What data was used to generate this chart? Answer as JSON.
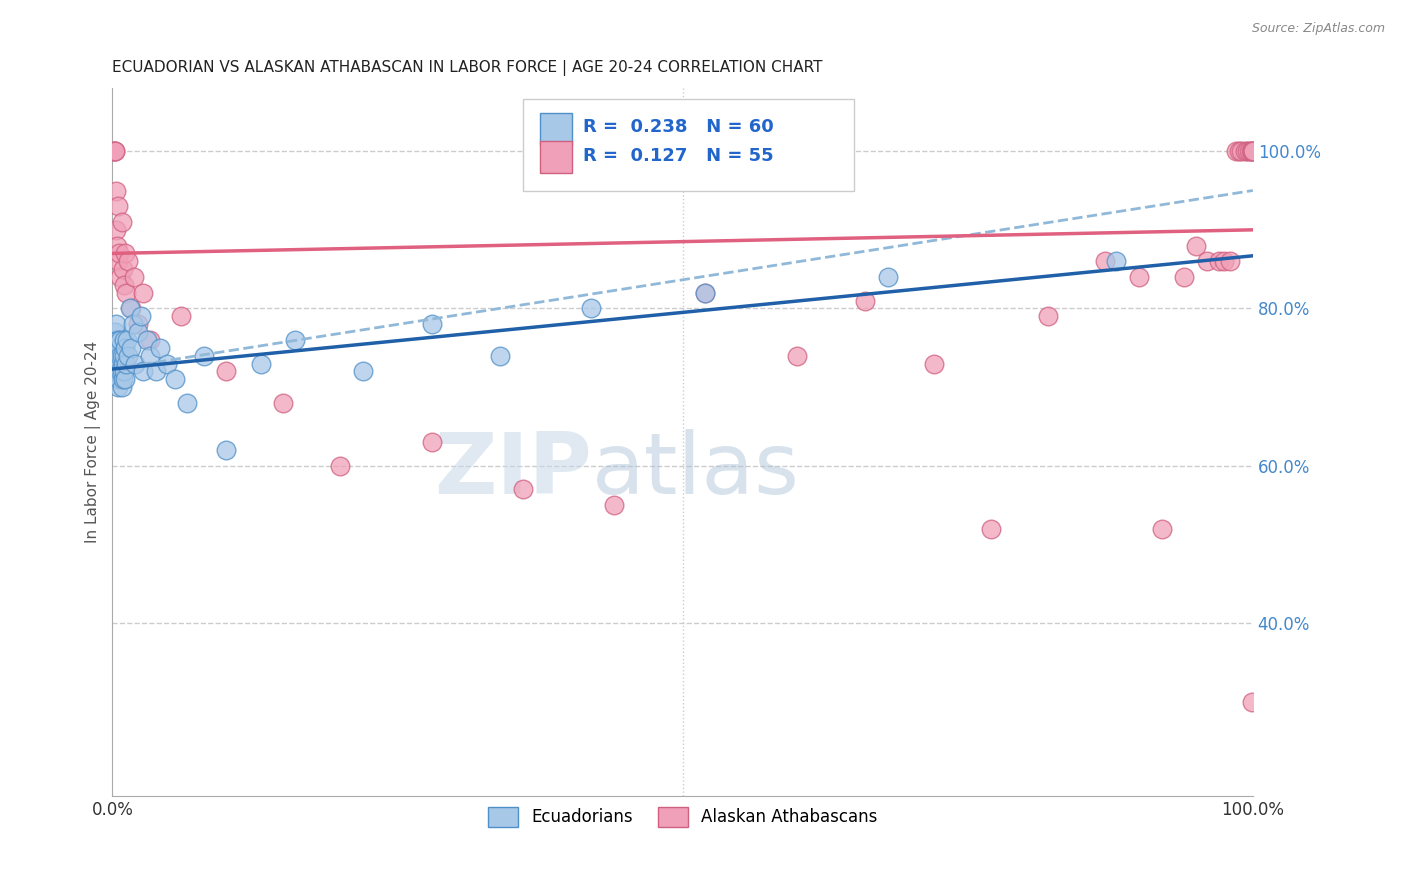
{
  "title": "ECUADORIAN VS ALASKAN ATHABASCAN IN LABOR FORCE | AGE 20-24 CORRELATION CHART",
  "source": "Source: ZipAtlas.com",
  "ylabel": "In Labor Force | Age 20-24",
  "legend_label1": "Ecuadorians",
  "legend_label2": "Alaskan Athabascans",
  "r1": 0.238,
  "n1": 60,
  "r2": 0.127,
  "n2": 55,
  "color_blue_fill": "#A8C8E8",
  "color_blue_edge": "#5090C8",
  "color_pink_fill": "#F0A0B8",
  "color_pink_edge": "#D06080",
  "color_blue_line": "#2060A8",
  "color_pink_line": "#E06080",
  "color_dashed": "#90B8D8",
  "watermark_zip": "ZIP",
  "watermark_atlas": "atlas",
  "xlim": [
    0.0,
    1.0
  ],
  "ylim": [
    0.18,
    1.08
  ],
  "yticks": [
    0.4,
    0.6,
    0.8,
    1.0
  ],
  "ytick_labels": [
    "40.0%",
    "60.0%",
    "80.0%",
    "100.0%"
  ],
  "grid_color": "#CCCCCC",
  "blue_x": [
    0.001,
    0.001,
    0.002,
    0.002,
    0.002,
    0.003,
    0.003,
    0.003,
    0.003,
    0.004,
    0.004,
    0.004,
    0.005,
    0.005,
    0.005,
    0.005,
    0.006,
    0.006,
    0.006,
    0.007,
    0.007,
    0.007,
    0.008,
    0.008,
    0.008,
    0.009,
    0.009,
    0.01,
    0.01,
    0.01,
    0.011,
    0.011,
    0.012,
    0.013,
    0.014,
    0.015,
    0.016,
    0.018,
    0.02,
    0.022,
    0.025,
    0.027,
    0.03,
    0.033,
    0.038,
    0.042,
    0.048,
    0.055,
    0.065,
    0.08,
    0.1,
    0.13,
    0.16,
    0.22,
    0.28,
    0.34,
    0.42,
    0.52,
    0.68,
    0.88
  ],
  "blue_y": [
    0.74,
    0.76,
    0.73,
    0.75,
    0.77,
    0.72,
    0.74,
    0.76,
    0.78,
    0.71,
    0.73,
    0.75,
    0.7,
    0.72,
    0.74,
    0.76,
    0.71,
    0.73,
    0.75,
    0.72,
    0.74,
    0.76,
    0.7,
    0.72,
    0.74,
    0.71,
    0.73,
    0.72,
    0.74,
    0.76,
    0.71,
    0.75,
    0.73,
    0.76,
    0.74,
    0.8,
    0.75,
    0.78,
    0.73,
    0.77,
    0.79,
    0.72,
    0.76,
    0.74,
    0.72,
    0.75,
    0.73,
    0.71,
    0.68,
    0.74,
    0.62,
    0.73,
    0.76,
    0.72,
    0.78,
    0.74,
    0.8,
    0.82,
    0.84,
    0.86
  ],
  "pink_x": [
    0.001,
    0.001,
    0.002,
    0.002,
    0.003,
    0.003,
    0.004,
    0.005,
    0.005,
    0.006,
    0.007,
    0.008,
    0.009,
    0.01,
    0.011,
    0.012,
    0.014,
    0.016,
    0.019,
    0.022,
    0.027,
    0.033,
    0.06,
    0.1,
    0.15,
    0.2,
    0.28,
    0.36,
    0.44,
    0.52,
    0.6,
    0.66,
    0.72,
    0.77,
    0.82,
    0.87,
    0.9,
    0.92,
    0.94,
    0.95,
    0.96,
    0.97,
    0.975,
    0.98,
    0.985,
    0.988,
    0.99,
    0.993,
    0.995,
    0.997,
    0.998,
    0.999,
    0.999,
    0.9995,
    0.9998
  ],
  "pink_y": [
    1.0,
    1.0,
    1.0,
    1.0,
    0.95,
    0.9,
    0.88,
    0.93,
    0.86,
    0.87,
    0.84,
    0.91,
    0.85,
    0.83,
    0.87,
    0.82,
    0.86,
    0.8,
    0.84,
    0.78,
    0.82,
    0.76,
    0.79,
    0.72,
    0.68,
    0.6,
    0.63,
    0.57,
    0.55,
    0.82,
    0.74,
    0.81,
    0.73,
    0.52,
    0.79,
    0.86,
    0.84,
    0.52,
    0.84,
    0.88,
    0.86,
    0.86,
    0.86,
    0.86,
    1.0,
    1.0,
    1.0,
    1.0,
    1.0,
    1.0,
    1.0,
    1.0,
    1.0,
    0.3,
    1.0
  ],
  "blue_trendline": [
    0.723,
    0.867
  ],
  "pink_trendline": [
    0.87,
    0.9
  ],
  "dashed_line": [
    0.723,
    0.95
  ]
}
